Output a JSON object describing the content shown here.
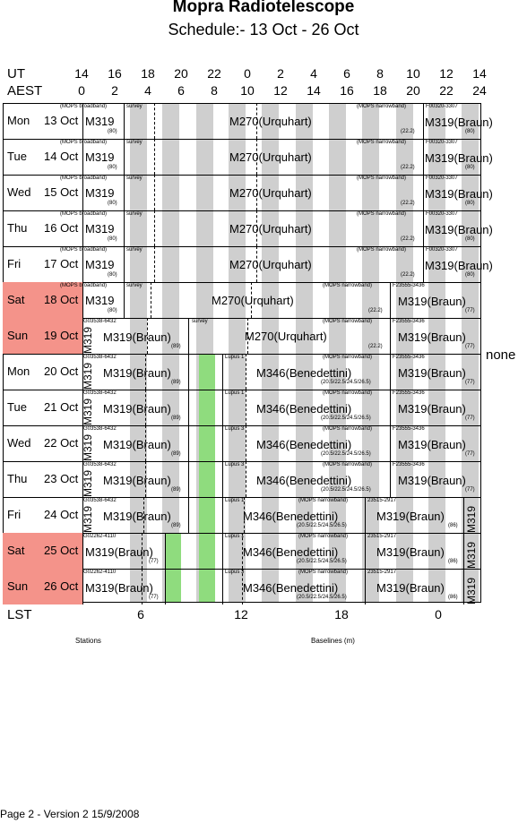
{
  "header": {
    "title": "Mopra Radiotelescope",
    "subtitle": "Schedule:- 13 Oct - 26 Oct"
  },
  "axes": {
    "ut_label": "UT",
    "aest_label": "AEST",
    "ut_ticks": [
      "14",
      "16",
      "18",
      "20",
      "22",
      "0",
      "2",
      "4",
      "6",
      "8",
      "10",
      "12",
      "14"
    ],
    "aest_ticks": [
      "0",
      "2",
      "4",
      "6",
      "8",
      "10",
      "12",
      "14",
      "16",
      "18",
      "20",
      "22",
      "24"
    ],
    "lst_label": "LST",
    "lst_ticks": [
      "6",
      "12",
      "18",
      "0"
    ]
  },
  "side_note": "none",
  "bottom_labels": {
    "stations": "Stations",
    "baselines": "Baselines (m)"
  },
  "footer": "Page 2 - Version 2  15/9/2008",
  "days": [
    {
      "name": "Mon",
      "date": "13 Oct",
      "weekend": false
    },
    {
      "name": "Tue",
      "date": "14 Oct",
      "weekend": false
    },
    {
      "name": "Wed",
      "date": "15 Oct",
      "weekend": false
    },
    {
      "name": "Thu",
      "date": "16 Oct",
      "weekend": false
    },
    {
      "name": "Fri",
      "date": "17 Oct",
      "weekend": false
    },
    {
      "name": "Sat",
      "date": "18 Oct",
      "weekend": true
    },
    {
      "name": "Sun",
      "date": "19 Oct",
      "weekend": true
    },
    {
      "name": "Mon",
      "date": "20 Oct",
      "weekend": false
    },
    {
      "name": "Tue",
      "date": "21 Oct",
      "weekend": false
    },
    {
      "name": "Wed",
      "date": "22 Oct",
      "weekend": false
    },
    {
      "name": "Thu",
      "date": "23 Oct",
      "weekend": false
    },
    {
      "name": "Fri",
      "date": "24 Oct",
      "weekend": false
    },
    {
      "name": "Sat",
      "date": "25 Oct",
      "weekend": true
    },
    {
      "name": "Sun",
      "date": "26 Oct",
      "weekend": true
    }
  ],
  "text": {
    "mops_broadband": "(MOPS broadband)",
    "mops_narrowband": "(MOPS narrowband)",
    "survey": "survey",
    "m319": "M319",
    "m319_braun": "M319(Braun)",
    "m270": "M270(Urquhart)",
    "m346": "M346(Benedettini)",
    "f00320": "F00320-3307",
    "f23555": "F23555-3436",
    "g03538": "G03538-6432",
    "g02262": "G02262-4110",
    "g23515": "23515-2917",
    "lupus1": "Lupus 1",
    "lupus3": "Lupus 3",
    "n80": "(80)",
    "n89": "(89)",
    "n77": "(77)",
    "n86": "(86)",
    "n22": "(22.2)",
    "bl": "(20.5/22.5/24.5/26.5)"
  }
}
